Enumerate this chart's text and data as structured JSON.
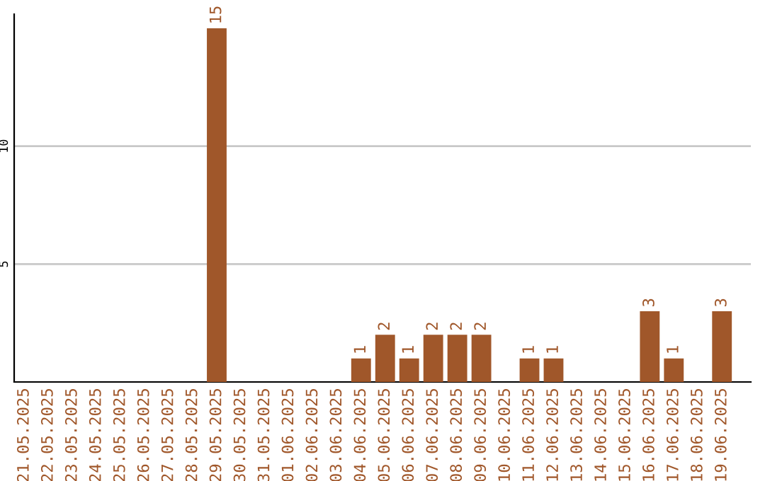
{
  "chart_data": {
    "type": "bar",
    "categories": [
      "21.05.2025",
      "22.05.2025",
      "23.05.2025",
      "24.05.2025",
      "25.05.2025",
      "26.05.2025",
      "27.05.2025",
      "28.05.2025",
      "29.05.2025",
      "30.05.2025",
      "31.05.2025",
      "01.06.2025",
      "02.06.2025",
      "03.06.2025",
      "04.06.2025",
      "05.06.2025",
      "06.06.2025",
      "07.06.2025",
      "08.06.2025",
      "09.06.2025",
      "10.06.2025",
      "11.06.2025",
      "12.06.2025",
      "13.06.2025",
      "14.06.2025",
      "15.06.2025",
      "16.06.2025",
      "17.06.2025",
      "18.06.2025",
      "19.06.2025"
    ],
    "values": [
      0,
      0,
      0,
      0,
      0,
      0,
      0,
      0,
      15,
      0,
      0,
      0,
      0,
      0,
      1,
      2,
      1,
      2,
      2,
      2,
      0,
      1,
      1,
      0,
      0,
      0,
      3,
      1,
      0,
      3
    ],
    "value_labels": [
      null,
      null,
      null,
      null,
      null,
      null,
      null,
      null,
      "15",
      null,
      null,
      null,
      null,
      null,
      "1",
      "2",
      "1",
      "2",
      "2",
      "2",
      null,
      "1",
      "1",
      null,
      null,
      null,
      "3",
      "1",
      null,
      "3"
    ],
    "color": "#a0572a",
    "ylim": [
      0,
      15.6
    ],
    "yticks": [
      5,
      10
    ],
    "grid": "y"
  }
}
